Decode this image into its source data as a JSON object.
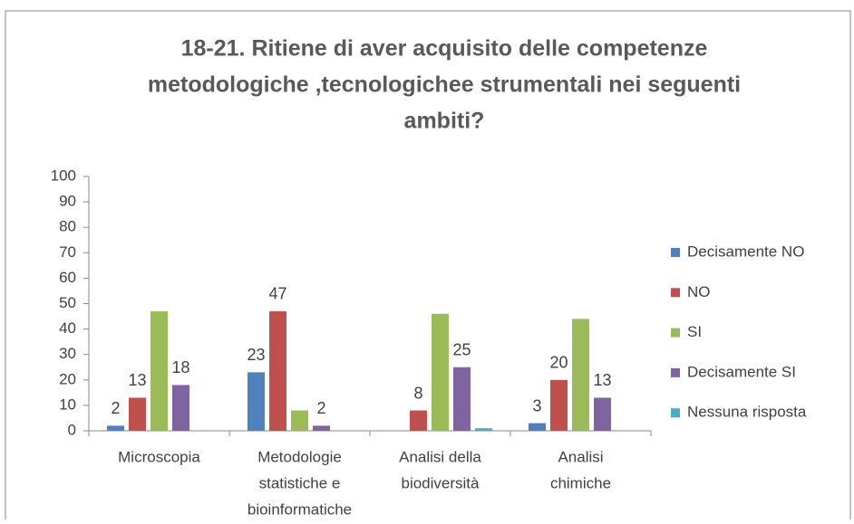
{
  "chart_data": {
    "type": "bar",
    "title": [
      "18-21. Ritiene di aver acquisito delle competenze",
      "metodologiche ,tecnologichee strumentali nei seguenti",
      "ambiti?"
    ],
    "categories": [
      [
        "Microscopia"
      ],
      [
        "Metodologie",
        "statistiche e",
        "bioinformatiche"
      ],
      [
        "Analisi della",
        "biodiversità"
      ],
      [
        "Analisi",
        "chimiche"
      ]
    ],
    "series": [
      {
        "name": "Decisamente NO",
        "color": "#4f81bd",
        "values": [
          2,
          23,
          null,
          3
        ],
        "show_labels": true
      },
      {
        "name": "NO",
        "color": "#c0504d",
        "values": [
          13,
          47,
          8,
          20
        ],
        "show_labels": true
      },
      {
        "name": "SI",
        "color": "#9bbb59",
        "values": [
          47,
          8,
          46,
          44
        ],
        "show_labels": false
      },
      {
        "name": "Decisamente SI",
        "color": "#8064a2",
        "values": [
          18,
          2,
          25,
          13
        ],
        "show_labels": true
      },
      {
        "name": "Nessuna risposta",
        "color": "#4bacc6",
        "values": [
          null,
          null,
          1,
          null
        ],
        "show_labels": false
      }
    ],
    "ylim": [
      0,
      100
    ],
    "yticks": [
      0,
      10,
      20,
      30,
      40,
      50,
      60,
      70,
      80,
      90,
      100
    ],
    "grid": false,
    "legend": "right"
  }
}
